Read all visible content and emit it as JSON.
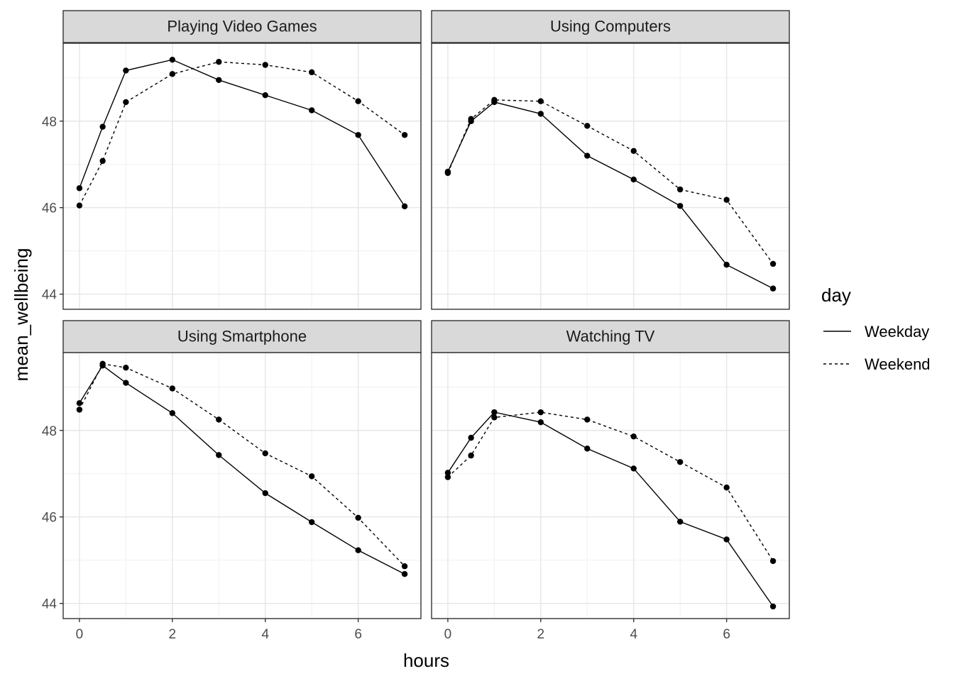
{
  "chart_data": {
    "type": "line",
    "xlabel": "hours",
    "ylabel": "mean_wellbeing",
    "xlim": [
      -0.35,
      7.35
    ],
    "ylim": [
      43.65,
      49.8
    ],
    "x_ticks": [
      0,
      2,
      4,
      6
    ],
    "y_ticks": [
      44,
      46,
      48
    ],
    "grid": true,
    "legend": {
      "title": "day",
      "position": "right",
      "entries": [
        {
          "name": "Weekday",
          "dash": "solid"
        },
        {
          "name": "Weekend",
          "dash": "dotted"
        }
      ]
    },
    "x": [
      0,
      0.5,
      1,
      2,
      3,
      4,
      5,
      6,
      7
    ],
    "panels": [
      {
        "title": "Playing Video Games",
        "series": [
          {
            "name": "Weekday",
            "values": [
              46.45,
              47.87,
              49.17,
              49.42,
              48.95,
              48.6,
              48.25,
              47.68,
              46.03
            ]
          },
          {
            "name": "Weekend",
            "values": [
              46.05,
              47.08,
              48.44,
              49.09,
              49.37,
              49.3,
              49.13,
              48.46,
              47.68
            ]
          }
        ]
      },
      {
        "title": "Using Computers",
        "series": [
          {
            "name": "Weekday",
            "values": [
              46.83,
              48.0,
              48.44,
              48.17,
              47.2,
              46.65,
              46.04,
              44.68,
              44.13
            ]
          },
          {
            "name": "Weekend",
            "values": [
              46.8,
              48.05,
              48.49,
              48.46,
              47.89,
              47.31,
              46.42,
              46.18,
              44.7
            ]
          }
        ]
      },
      {
        "title": "Using Smartphone",
        "series": [
          {
            "name": "Weekday",
            "values": [
              48.63,
              49.5,
              49.1,
              48.4,
              47.43,
              46.55,
              45.88,
              45.23,
              44.68
            ]
          },
          {
            "name": "Weekend",
            "values": [
              48.48,
              49.54,
              49.45,
              48.97,
              48.25,
              47.47,
              46.94,
              45.98,
              44.86
            ]
          }
        ]
      },
      {
        "title": "Watching TV",
        "series": [
          {
            "name": "Weekday",
            "values": [
              47.02,
              47.83,
              48.42,
              48.19,
              47.58,
              47.12,
              45.89,
              45.48,
              43.93
            ]
          },
          {
            "name": "Weekend",
            "values": [
              46.92,
              47.42,
              48.3,
              48.42,
              48.25,
              47.86,
              47.27,
              46.68,
              44.98
            ]
          }
        ]
      }
    ]
  }
}
